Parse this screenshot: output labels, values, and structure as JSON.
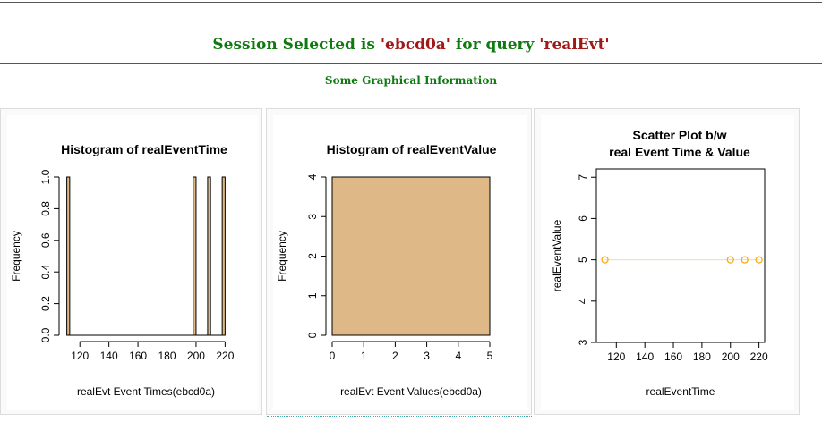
{
  "header": {
    "title_prefix": "Session Selected is ",
    "session": "'ebcd0a'",
    "title_mid": " for query ",
    "query": "'realEvt'",
    "subtitle": "Some Graphical Information"
  },
  "colors": {
    "bar_fill": "#DEB887",
    "scatter_point": "#FFA500",
    "header_green": "#0F7A0F",
    "header_red": "#A01818"
  },
  "chart_data": [
    {
      "type": "bar",
      "title": "Histogram of realEventTime",
      "xlabel": "realEvt Event Times(ebcd0a)",
      "ylabel": "Frequency",
      "xlim": [
        110,
        221
      ],
      "ylim": [
        0,
        1
      ],
      "xticks": [
        120,
        140,
        160,
        180,
        200,
        220
      ],
      "yticks": [
        0.0,
        0.2,
        0.4,
        0.6,
        0.8,
        1.0
      ],
      "ytick_labels": [
        "0.0",
        "0.2",
        "0.4",
        "0.6",
        "0.8",
        "1.0"
      ],
      "bins": [
        {
          "x0": 111,
          "x1": 113,
          "count": 1
        },
        {
          "x0": 113,
          "x1": 198,
          "count": 0
        },
        {
          "x0": 198,
          "x1": 200,
          "count": 1
        },
        {
          "x0": 200,
          "x1": 208,
          "count": 0
        },
        {
          "x0": 208,
          "x1": 210,
          "count": 1
        },
        {
          "x0": 210,
          "x1": 218,
          "count": 0
        },
        {
          "x0": 218,
          "x1": 220,
          "count": 1
        }
      ]
    },
    {
      "type": "bar",
      "title": "Histogram of realEventValue",
      "xlabel": "realEvt Event Values(ebcd0a)",
      "ylabel": "Frequency",
      "xlim": [
        0,
        5
      ],
      "ylim": [
        0,
        4
      ],
      "xticks": [
        0,
        1,
        2,
        3,
        4,
        5
      ],
      "yticks": [
        0,
        1,
        2,
        3,
        4
      ],
      "ytick_labels": [
        "0",
        "1",
        "2",
        "3",
        "4"
      ],
      "bins": [
        {
          "x0": 0,
          "x1": 5,
          "count": 4
        }
      ]
    },
    {
      "type": "scatter",
      "title_lines": [
        "Scatter Plot b/w",
        "real Event Time & Value"
      ],
      "xlabel": "realEventTime",
      "ylabel": "realEventValue",
      "xlim": [
        106,
        224
      ],
      "ylim": [
        3,
        7.2
      ],
      "xticks": [
        120,
        140,
        160,
        180,
        200,
        220
      ],
      "yticks": [
        3,
        4,
        5,
        6,
        7
      ],
      "ytick_labels": [
        "3",
        "4",
        "5",
        "6",
        "7"
      ],
      "points": [
        {
          "x": 112,
          "y": 5
        },
        {
          "x": 200,
          "y": 5
        },
        {
          "x": 210,
          "y": 5
        },
        {
          "x": 220,
          "y": 5
        }
      ]
    }
  ]
}
